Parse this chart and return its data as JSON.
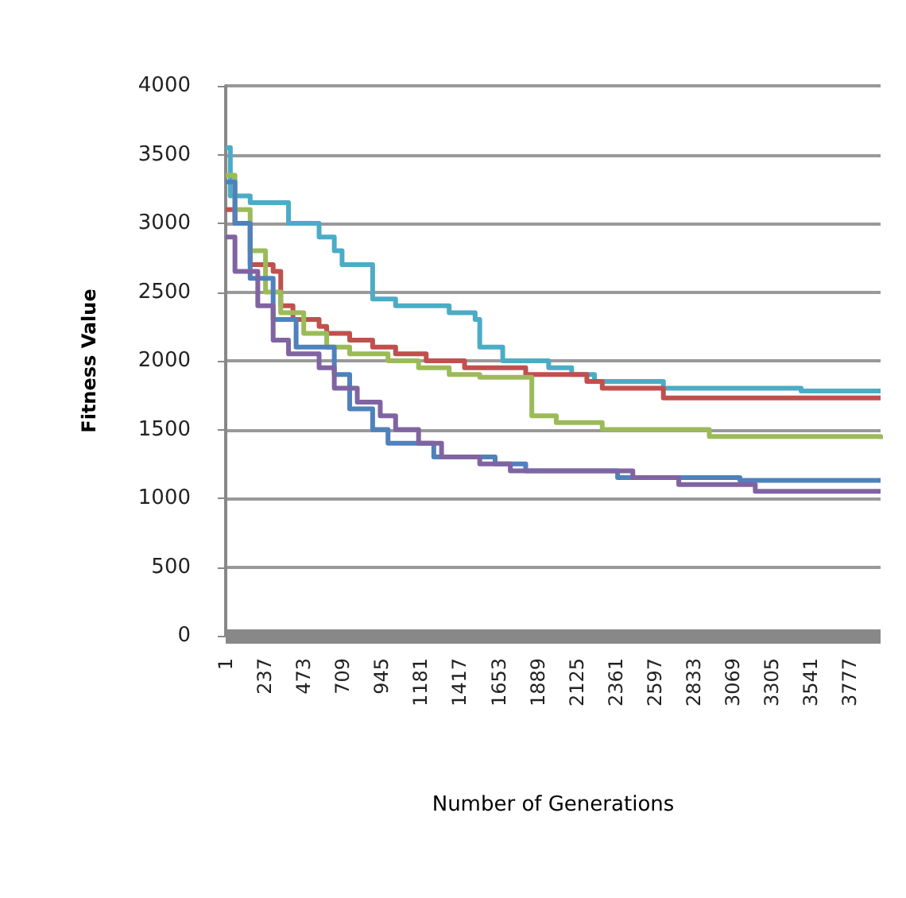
{
  "chart_data": {
    "type": "step",
    "xlabel": "Number of Generations",
    "ylabel": "Fitness Value",
    "xlim": [
      1,
      3963
    ],
    "xticks": [
      1,
      237,
      473,
      709,
      945,
      1181,
      1417,
      1653,
      1889,
      2125,
      2361,
      2597,
      2833,
      3069,
      3305,
      3541,
      3777
    ],
    "ylim": [
      0,
      4000
    ],
    "yticks": [
      0,
      500,
      1000,
      1500,
      2000,
      2500,
      3000,
      3500,
      4000
    ],
    "grid": "y",
    "series": [
      {
        "color": "#4bacc6",
        "x": [
          1,
          29,
          149,
          381,
          566,
          658,
          705,
          890,
          1029,
          1353,
          1510,
          1538,
          1677,
          1955,
          2094,
          2232,
          2649,
          3482,
          3963
        ],
        "values": [
          3550,
          3200,
          3150,
          3000,
          2900,
          2800,
          2700,
          2450,
          2400,
          2350,
          2300,
          2100,
          2000,
          1950,
          1900,
          1850,
          1800,
          1780,
          1780
        ]
      },
      {
        "color": "#c0504d",
        "x": [
          1,
          57,
          149,
          288,
          334,
          408,
          566,
          612,
          751,
          890,
          1029,
          1214,
          1446,
          1816,
          2186,
          2279,
          2649,
          3963
        ],
        "values": [
          3100,
          3000,
          2700,
          2650,
          2400,
          2300,
          2250,
          2200,
          2150,
          2100,
          2050,
          2000,
          1950,
          1900,
          1850,
          1800,
          1730,
          1730
        ]
      },
      {
        "color": "#9bbb59",
        "x": [
          1,
          57,
          149,
          242,
          334,
          473,
          612,
          751,
          983,
          1168,
          1353,
          1538,
          1853,
          2001,
          2279,
          2927,
          3963
        ],
        "values": [
          3350,
          3100,
          2800,
          2500,
          2350,
          2200,
          2100,
          2050,
          2000,
          1950,
          1900,
          1880,
          1600,
          1550,
          1500,
          1450,
          1430
        ]
      },
      {
        "color": "#4f81bd",
        "x": [
          1,
          57,
          149,
          288,
          427,
          658,
          751,
          890,
          983,
          1260,
          1631,
          1816,
          2372,
          3112,
          3963
        ],
        "values": [
          3300,
          3000,
          2600,
          2300,
          2100,
          1900,
          1650,
          1500,
          1400,
          1300,
          1250,
          1200,
          1150,
          1130,
          1130
        ]
      },
      {
        "color": "#8064a2",
        "x": [
          1,
          57,
          195,
          288,
          381,
          566,
          658,
          797,
          936,
          1029,
          1168,
          1307,
          1538,
          1723,
          2464,
          2742,
          3205,
          3963
        ],
        "values": [
          2900,
          2650,
          2400,
          2150,
          2050,
          1950,
          1800,
          1700,
          1600,
          1500,
          1400,
          1300,
          1250,
          1200,
          1150,
          1100,
          1050,
          1050
        ]
      }
    ]
  }
}
